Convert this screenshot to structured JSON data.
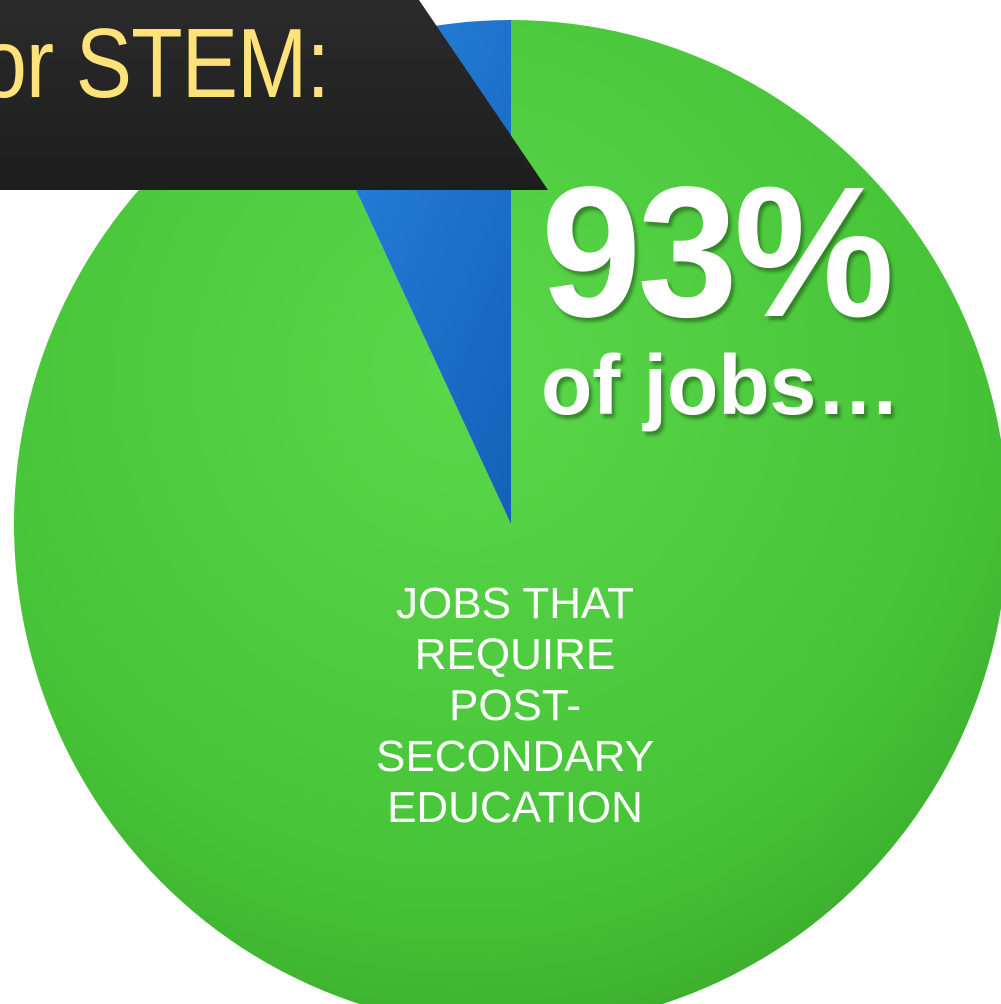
{
  "banner": {
    "text": "or STEM:"
  },
  "headline": {
    "value": "93%",
    "subtext": "of jobs…"
  },
  "chart_data": {
    "type": "pie",
    "slices": [
      {
        "label_lines": [
          "JOBS THAT",
          "REQUIRE",
          "POST-",
          "SECONDARY",
          "EDUCATION"
        ],
        "value": 93,
        "color": "#4cc93c"
      },
      {
        "label_lines": [],
        "value": 7,
        "color": "#1c74d0"
      }
    ],
    "start_angle_deg": 0,
    "direction": "clockwise"
  },
  "colors": {
    "green": "#4cc93c",
    "blue": "#1c74d0",
    "banner_bg": "#222222",
    "banner_text": "#ffe37a",
    "headline_text": "#ffffff"
  }
}
